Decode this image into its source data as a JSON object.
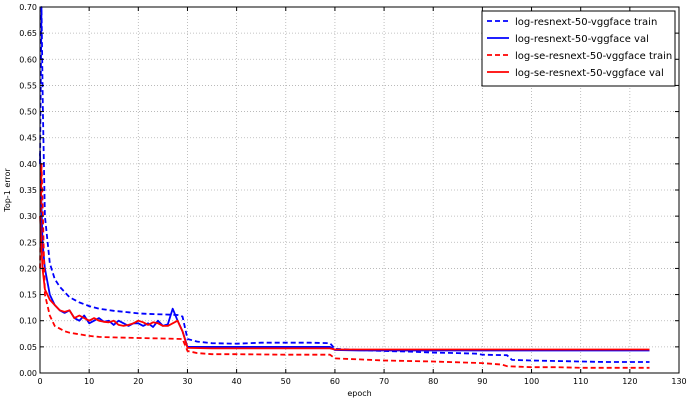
{
  "chart_data": {
    "type": "line",
    "title": "",
    "xlabel": "epoch",
    "ylabel": "Top-1 error",
    "xlim": [
      0,
      130
    ],
    "ylim": [
      0.0,
      0.7
    ],
    "xticks": [
      "0",
      "10",
      "20",
      "30",
      "40",
      "50",
      "60",
      "70",
      "80",
      "90",
      "100",
      "110",
      "120",
      "130"
    ],
    "yticks": [
      "0.00",
      "0.05",
      "0.10",
      "0.15",
      "0.20",
      "0.25",
      "0.30",
      "0.35",
      "0.40",
      "0.45",
      "0.50",
      "0.55",
      "0.60",
      "0.65",
      "0.70"
    ],
    "grid": true,
    "legend_position": "top-right",
    "series": [
      {
        "name": "log-resnext-50-vggface train",
        "color": "#0000ff",
        "style": "dashed",
        "x": [
          0,
          0.3,
          0.6,
          1,
          2,
          3,
          4,
          5,
          6,
          7,
          8,
          10,
          12,
          15,
          18,
          20,
          22,
          25,
          28,
          29,
          30,
          32,
          35,
          40,
          45,
          50,
          55,
          59,
          60,
          65,
          70,
          75,
          80,
          85,
          89,
          90,
          95,
          96,
          100,
          105,
          110,
          115,
          120,
          124
        ],
        "y": [
          0.4,
          0.7,
          0.5,
          0.3,
          0.21,
          0.18,
          0.165,
          0.155,
          0.145,
          0.14,
          0.135,
          0.128,
          0.123,
          0.119,
          0.116,
          0.114,
          0.113,
          0.112,
          0.111,
          0.108,
          0.065,
          0.06,
          0.057,
          0.056,
          0.058,
          0.058,
          0.058,
          0.057,
          0.046,
          0.044,
          0.042,
          0.041,
          0.039,
          0.038,
          0.037,
          0.035,
          0.034,
          0.025,
          0.024,
          0.023,
          0.022,
          0.021,
          0.021,
          0.021
        ]
      },
      {
        "name": "log-resnext-50-vggface val",
        "color": "#0000ff",
        "style": "solid",
        "x": [
          0,
          0.5,
          1,
          2,
          3,
          4,
          5,
          6,
          7,
          8,
          9,
          10,
          11,
          12,
          13,
          14,
          15,
          16,
          17,
          18,
          19,
          20,
          21,
          22,
          23,
          24,
          25,
          26,
          27,
          28,
          29,
          30,
          35,
          40,
          45,
          50,
          55,
          59,
          60,
          65,
          70,
          80,
          90,
          100,
          110,
          120,
          124
        ],
        "y": [
          0.42,
          0.25,
          0.2,
          0.15,
          0.13,
          0.12,
          0.115,
          0.12,
          0.105,
          0.1,
          0.11,
          0.095,
          0.1,
          0.105,
          0.098,
          0.1,
          0.092,
          0.1,
          0.095,
          0.09,
          0.095,
          0.095,
          0.09,
          0.095,
          0.088,
          0.1,
          0.09,
          0.093,
          0.123,
          0.1,
          0.08,
          0.05,
          0.05,
          0.05,
          0.05,
          0.05,
          0.05,
          0.05,
          0.044,
          0.043,
          0.043,
          0.043,
          0.043,
          0.043,
          0.043,
          0.043,
          0.043
        ]
      },
      {
        "name": "log-se-resnext-50-vggface train",
        "color": "#ff0000",
        "style": "dashed",
        "x": [
          0,
          0.3,
          0.6,
          1,
          2,
          3,
          4,
          5,
          6,
          8,
          10,
          12,
          15,
          20,
          25,
          29,
          30,
          32,
          35,
          40,
          50,
          59,
          60,
          65,
          70,
          80,
          90,
          94,
          95,
          100,
          105,
          110,
          120,
          124
        ],
        "y": [
          0.2,
          0.4,
          0.3,
          0.15,
          0.11,
          0.09,
          0.085,
          0.08,
          0.077,
          0.074,
          0.071,
          0.069,
          0.068,
          0.067,
          0.066,
          0.065,
          0.042,
          0.038,
          0.036,
          0.036,
          0.035,
          0.035,
          0.028,
          0.026,
          0.024,
          0.022,
          0.019,
          0.016,
          0.013,
          0.011,
          0.011,
          0.01,
          0.01,
          0.01
        ]
      },
      {
        "name": "log-se-resnext-50-vggface val",
        "color": "#ff0000",
        "style": "solid",
        "x": [
          0,
          0.5,
          1,
          2,
          3,
          4,
          5,
          6,
          7,
          8,
          9,
          10,
          11,
          12,
          13,
          14,
          15,
          16,
          17,
          18,
          19,
          20,
          21,
          22,
          23,
          24,
          25,
          26,
          27,
          28,
          29,
          30,
          35,
          40,
          50,
          59,
          60,
          70,
          80,
          90,
          100,
          110,
          120,
          124
        ],
        "y": [
          0.3,
          0.2,
          0.16,
          0.14,
          0.13,
          0.12,
          0.117,
          0.12,
          0.105,
          0.11,
          0.105,
          0.1,
          0.105,
          0.1,
          0.098,
          0.097,
          0.1,
          0.092,
          0.09,
          0.092,
          0.095,
          0.1,
          0.097,
          0.092,
          0.097,
          0.095,
          0.09,
          0.09,
          0.095,
          0.1,
          0.08,
          0.048,
          0.047,
          0.047,
          0.047,
          0.047,
          0.045,
          0.045,
          0.045,
          0.045,
          0.045,
          0.045,
          0.045,
          0.045
        ]
      }
    ]
  }
}
